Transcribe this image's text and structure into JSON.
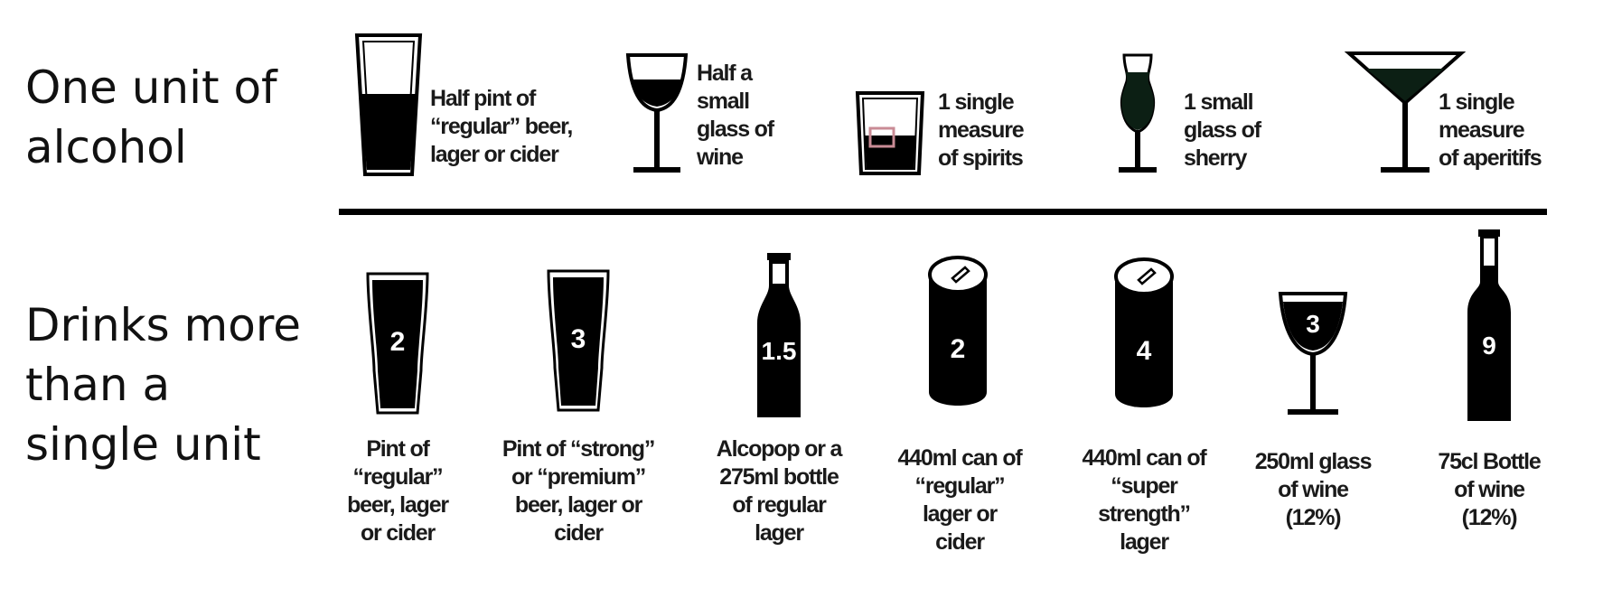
{
  "row_titles": {
    "one_unit": [
      "One unit of",
      "alcohol"
    ],
    "more_units": [
      "Drinks more",
      "than a",
      "single unit"
    ]
  },
  "one_unit_items": [
    {
      "icon": "half-pint-glass-icon",
      "label": [
        "Half pint of",
        "“regular” beer,",
        "lager or cider"
      ]
    },
    {
      "icon": "small-wine-glass-icon",
      "label": [
        "Half a",
        "small",
        "glass of",
        "wine"
      ]
    },
    {
      "icon": "spirits-tumbler-icon",
      "label": [
        "1 single",
        "measure",
        "of spirits"
      ]
    },
    {
      "icon": "sherry-glass-icon",
      "label": [
        "1 small",
        "glass of",
        "sherry"
      ]
    },
    {
      "icon": "martini-glass-icon",
      "label": [
        "1 single",
        "measure",
        "of aperitifs"
      ]
    }
  ],
  "more_items": [
    {
      "icon": "pint-glass-icon",
      "units": "2",
      "label": [
        "Pint of",
        "“regular”",
        "beer, lager",
        "or cider"
      ]
    },
    {
      "icon": "pint-glass-icon",
      "units": "3",
      "label": [
        "Pint of “strong”",
        "or “premium”",
        "beer, lager or",
        "cider"
      ]
    },
    {
      "icon": "beer-bottle-icon",
      "units": "1.5",
      "label": [
        "Alcopop or a",
        "275ml bottle",
        "of regular",
        "lager"
      ]
    },
    {
      "icon": "can-icon",
      "units": "2",
      "label": [
        "440ml can of",
        "“regular”",
        "lager or",
        "cider"
      ]
    },
    {
      "icon": "can-icon",
      "units": "4",
      "label": [
        "440ml can of",
        "“super",
        "strength”",
        "lager"
      ]
    },
    {
      "icon": "wine-glass-icon",
      "units": "3",
      "label": [
        "250ml glass",
        "of wine",
        "(12%)"
      ]
    },
    {
      "icon": "wine-bottle-icon",
      "units": "9",
      "label": [
        "75cl Bottle",
        "of wine",
        "(12%)"
      ]
    }
  ],
  "colors": {
    "fill": "#000000",
    "sherry_fill": "#0c1f14",
    "ice_cube": "#c98b95"
  }
}
